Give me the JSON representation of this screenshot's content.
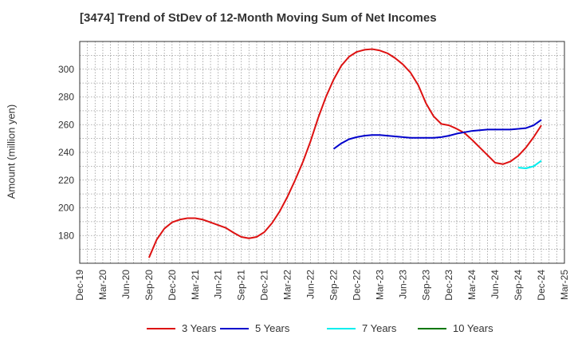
{
  "chart_data": {
    "type": "line",
    "title": "[3474]  Trend of StDev of 12-Month Moving Sum of Net Incomes",
    "xlabel": "",
    "ylabel": "Amount (million yen)",
    "ylim": [
      160,
      320
    ],
    "y_ticks": [
      180,
      200,
      220,
      240,
      260,
      280,
      300
    ],
    "x_ticks": [
      "Dec-19",
      "Mar-20",
      "Jun-20",
      "Sep-20",
      "Dec-20",
      "Mar-21",
      "Jun-21",
      "Sep-21",
      "Dec-21",
      "Mar-22",
      "Jun-22",
      "Sep-22",
      "Dec-22",
      "Mar-23",
      "Jun-23",
      "Sep-23",
      "Dec-23",
      "Mar-24",
      "Jun-24",
      "Sep-24",
      "Dec-24",
      "Mar-25"
    ],
    "grid": true,
    "legend_position": "bottom",
    "series": [
      {
        "name": "3 Years",
        "color": "#dd1111",
        "x": [
          "Sep-20",
          "Oct-20",
          "Nov-20",
          "Dec-20",
          "Jan-21",
          "Feb-21",
          "Mar-21",
          "Apr-21",
          "May-21",
          "Jun-21",
          "Jul-21",
          "Aug-21",
          "Sep-21",
          "Oct-21",
          "Nov-21",
          "Dec-21",
          "Jan-22",
          "Feb-22",
          "Mar-22",
          "Apr-22",
          "May-22",
          "Jun-22",
          "Jul-22",
          "Aug-22",
          "Sep-22",
          "Oct-22",
          "Nov-22",
          "Dec-22",
          "Jan-23",
          "Feb-23",
          "Mar-23",
          "Apr-23",
          "May-23",
          "Jun-23",
          "Jul-23",
          "Aug-23",
          "Sep-23",
          "Oct-23",
          "Nov-23",
          "Dec-23",
          "Jan-24",
          "Feb-24",
          "Mar-24",
          "Apr-24",
          "May-24",
          "Jun-24",
          "Jul-24",
          "Aug-24",
          "Sep-24",
          "Oct-24",
          "Nov-24",
          "Dec-24"
        ],
        "values": [
          164,
          177,
          185,
          189.5,
          191.5,
          192.5,
          192.5,
          191.5,
          189.5,
          187.5,
          185.5,
          182,
          179,
          178,
          179,
          182.5,
          189,
          197.5,
          208,
          220,
          233,
          248,
          265,
          280,
          292.5,
          302.5,
          309,
          312.5,
          314,
          314.5,
          313.5,
          311.5,
          308,
          303.5,
          297.5,
          288.5,
          275.5,
          266,
          260.5,
          259.5,
          257,
          254,
          249,
          243.5,
          238,
          232.5,
          231.5,
          233.5,
          237.5,
          243.5,
          251,
          259.5
        ]
      },
      {
        "name": "5 Years",
        "color": "#0000cc",
        "x": [
          "Sep-22",
          "Oct-22",
          "Nov-22",
          "Dec-22",
          "Jan-23",
          "Feb-23",
          "Mar-23",
          "Apr-23",
          "May-23",
          "Jun-23",
          "Jul-23",
          "Aug-23",
          "Sep-23",
          "Oct-23",
          "Nov-23",
          "Dec-23",
          "Jan-24",
          "Feb-24",
          "Mar-24",
          "Apr-24",
          "May-24",
          "Jun-24",
          "Jul-24",
          "Aug-24",
          "Sep-24",
          "Oct-24",
          "Nov-24",
          "Dec-24"
        ],
        "values": [
          242.5,
          246.5,
          249.5,
          251,
          252,
          252.5,
          252.5,
          252,
          251.5,
          251,
          250.5,
          250.5,
          250.5,
          250.5,
          251,
          252,
          253.5,
          254.5,
          255.5,
          256,
          256.5,
          256.5,
          256.5,
          256.5,
          257,
          257.5,
          259.5,
          263.5
        ]
      },
      {
        "name": "7 Years",
        "color": "#00eeee",
        "x": [
          "Sep-24",
          "Oct-24",
          "Nov-24",
          "Dec-24"
        ],
        "values": [
          229,
          228.5,
          230,
          234
        ]
      },
      {
        "name": "10 Years",
        "color": "#007700",
        "x": [],
        "values": []
      }
    ]
  }
}
